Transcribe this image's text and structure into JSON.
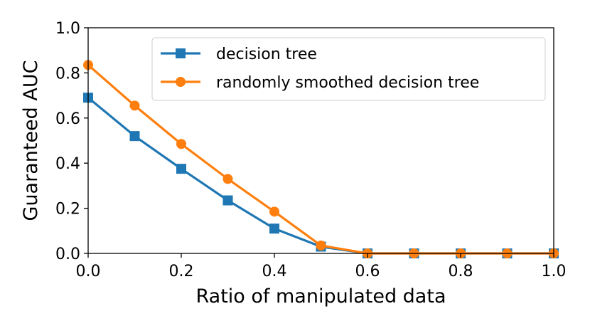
{
  "chart_data": {
    "type": "line",
    "title": "",
    "xlabel": "Ratio of manipulated data",
    "ylabel": "Guaranteed AUC",
    "xlim": [
      0.0,
      1.0
    ],
    "ylim": [
      0.0,
      1.0
    ],
    "xticks": [
      "0.0",
      "0.2",
      "0.4",
      "0.6",
      "0.8",
      "1.0"
    ],
    "yticks": [
      "0.0",
      "0.2",
      "0.4",
      "0.6",
      "0.8",
      "1.0"
    ],
    "grid": false,
    "legend_position": "top-right",
    "x": [
      0.0,
      0.1,
      0.2,
      0.3,
      0.4,
      0.5,
      0.6,
      0.7,
      0.8,
      0.9,
      1.0
    ],
    "series": [
      {
        "name": "decision tree",
        "color": "#1f77b4",
        "marker": "square",
        "values": [
          0.69,
          0.52,
          0.375,
          0.235,
          0.11,
          0.03,
          0.0,
          0.0,
          0.0,
          0.0,
          0.0
        ]
      },
      {
        "name": "randomly smoothed decision tree",
        "color": "#ff7f0e",
        "marker": "circle",
        "values": [
          0.835,
          0.655,
          0.485,
          0.33,
          0.185,
          0.035,
          0.0,
          0.0,
          0.0,
          0.0,
          0.0
        ]
      }
    ]
  }
}
